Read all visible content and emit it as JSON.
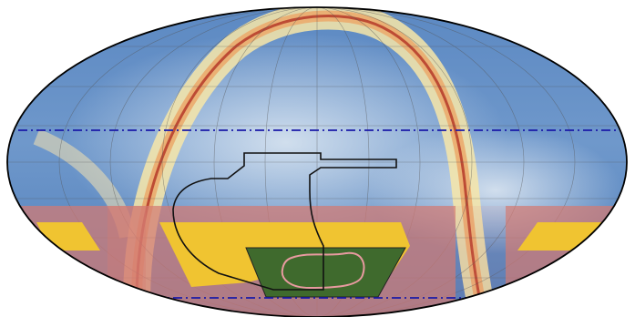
{
  "map": {
    "projection": "mollweide",
    "background_colormap": [
      "#3d6fb0",
      "#8fb3d9",
      "#dce8f2",
      "#f6e3a2",
      "#e8a765",
      "#b8402e"
    ],
    "graticule": {
      "color": "#555555",
      "shown": true
    },
    "outline": {
      "color": "#000000"
    },
    "lines": [
      {
        "name": "upper-declination-line",
        "color": "#1a1aa8",
        "style": "dash-dot"
      },
      {
        "name": "lower-declination-line",
        "color": "#1a1aa8",
        "style": "dash-dot"
      }
    ],
    "regions": [
      {
        "name": "southern-band",
        "color": "#d47a72",
        "opacity": 0.72
      },
      {
        "name": "yellow-footprint-left",
        "color": "#f0c431"
      },
      {
        "name": "yellow-footprint-center",
        "color": "#f0c431"
      },
      {
        "name": "yellow-footprint-right",
        "color": "#f0c431"
      },
      {
        "name": "green-footprint",
        "color": "#3f6a2d"
      },
      {
        "name": "pink-footprint-outline",
        "color": "#e89aa0"
      },
      {
        "name": "black-footprint-outline",
        "color": "#111111"
      }
    ]
  }
}
